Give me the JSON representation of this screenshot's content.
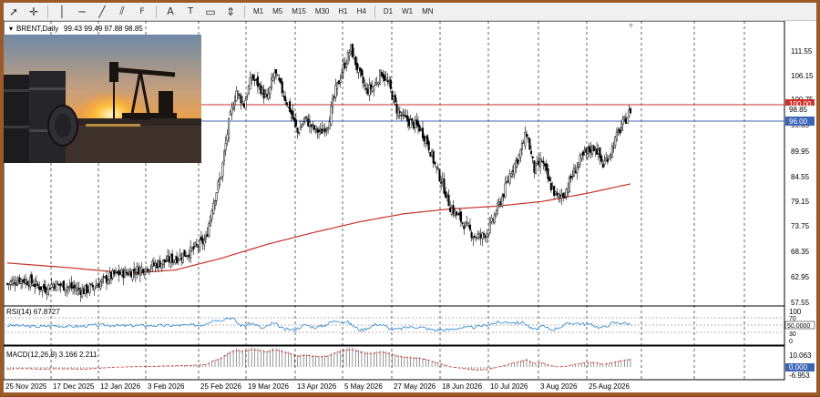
{
  "toolbar": {
    "timeframes": [
      "M1",
      "M5",
      "M15",
      "M30",
      "H1",
      "H4",
      "D1",
      "W1",
      "MN"
    ],
    "icons": [
      "cursor-icon",
      "crosshair-icon",
      "vertical-line-icon",
      "horizontal-line-icon",
      "trendline-icon",
      "channel-icon",
      "fibonacci-icon",
      "text-icon",
      "label-icon",
      "shapes-icon",
      "arrows-icon"
    ]
  },
  "main": {
    "symbol_header": "BRENT,Daily",
    "ohlc": "99.43 99.49 97.88 98.85",
    "price_ticks": [
      "111.55",
      "106.15",
      "100.75",
      "95.35",
      "89.95",
      "84.55",
      "79.15",
      "73.75",
      "68.35",
      "62.95",
      "57.55"
    ],
    "current_price_label": "98.85",
    "level_red_label": "100.00",
    "level_blue_label": "96.00",
    "colors": {
      "red_level": "#d0302a",
      "blue_level": "#3c64b4",
      "ma": "#c83228",
      "candle": "#000000"
    }
  },
  "rsi": {
    "label": "RSI(14) 67.8727",
    "ticks": [
      "100",
      "70",
      "50",
      "30",
      "0"
    ],
    "level_label": "50.0000"
  },
  "macd": {
    "label": "MACD(12,26,9) 3.166 2.211",
    "ticks": [
      "10.063",
      "0.000",
      "-6.953"
    ]
  },
  "x_axis": [
    "25 Nov 2025",
    "17 Dec 2025",
    "12 Jan 2026",
    "3 Feb 2026",
    "25 Feb 2026",
    "19 Mar 2026",
    "13 Apr 2026",
    "5 May 2026",
    "27 May 2026",
    "18 Jun 2026",
    "10 Jul 2026",
    "3 Aug 2026",
    "25 Aug 2026"
  ],
  "photo": {
    "subject": "oil-pumpjack-sunset-image"
  },
  "chart_data": {
    "type": "candlestick",
    "title": "BRENT,Daily",
    "ylim": [
      57.55,
      111.55
    ],
    "levels": [
      100.0,
      96.0
    ],
    "last_close": 98.85,
    "x_dates": [
      "25 Nov 2025",
      "17 Dec 2025",
      "12 Jan 2026",
      "3 Feb 2026",
      "25 Feb 2026",
      "19 Mar 2026",
      "13 Apr 2026",
      "5 May 2026",
      "27 May 2026",
      "18 Jun 2026",
      "10 Jul 2026",
      "3 Aug 2026",
      "25 Aug 2026"
    ],
    "close_path": [
      [
        0,
        61.5
      ],
      [
        8,
        62.5
      ],
      [
        15,
        62
      ],
      [
        20,
        61
      ],
      [
        25,
        60.5
      ],
      [
        30,
        61.5
      ],
      [
        38,
        61
      ],
      [
        44,
        60.5
      ],
      [
        50,
        60
      ],
      [
        57,
        61
      ],
      [
        62,
        62
      ],
      [
        70,
        63.5
      ],
      [
        80,
        64
      ],
      [
        90,
        65
      ],
      [
        100,
        66
      ],
      [
        110,
        67
      ],
      [
        120,
        68.5
      ],
      [
        130,
        71
      ],
      [
        134,
        78
      ],
      [
        140,
        85
      ],
      [
        145,
        96
      ],
      [
        150,
        103
      ],
      [
        155,
        100
      ],
      [
        160,
        106
      ],
      [
        165,
        104
      ],
      [
        170,
        101
      ],
      [
        175,
        107
      ],
      [
        180,
        103
      ],
      [
        185,
        99
      ],
      [
        190,
        94
      ],
      [
        195,
        97
      ],
      [
        200,
        95
      ],
      [
        205,
        94
      ],
      [
        210,
        96
      ],
      [
        215,
        103
      ],
      [
        220,
        108
      ],
      [
        225,
        112
      ],
      [
        230,
        107
      ],
      [
        235,
        103
      ],
      [
        240,
        104
      ],
      [
        245,
        107
      ],
      [
        250,
        104
      ],
      [
        255,
        99
      ],
      [
        260,
        97
      ],
      [
        265,
        96
      ],
      [
        270,
        95
      ],
      [
        275,
        92
      ],
      [
        280,
        87
      ],
      [
        285,
        83
      ],
      [
        290,
        78
      ],
      [
        295,
        76
      ],
      [
        300,
        74
      ],
      [
        305,
        72
      ],
      [
        310,
        71.5
      ],
      [
        315,
        73
      ],
      [
        320,
        77
      ],
      [
        325,
        81
      ],
      [
        330,
        86
      ],
      [
        335,
        89
      ],
      [
        340,
        94
      ],
      [
        345,
        86
      ],
      [
        350,
        88
      ],
      [
        355,
        83
      ],
      [
        360,
        80
      ],
      [
        365,
        81
      ],
      [
        370,
        85
      ],
      [
        375,
        88
      ],
      [
        380,
        90
      ],
      [
        385,
        91
      ],
      [
        390,
        87
      ],
      [
        395,
        90
      ],
      [
        400,
        94
      ],
      [
        405,
        97
      ],
      [
        408,
        98.85
      ]
    ],
    "ma_path": [
      [
        0,
        66
      ],
      [
        40,
        65
      ],
      [
        80,
        63.8
      ],
      [
        110,
        64.5
      ],
      [
        140,
        67
      ],
      [
        170,
        70
      ],
      [
        200,
        72.5
      ],
      [
        230,
        74.8
      ],
      [
        260,
        76.6
      ],
      [
        290,
        77.6
      ],
      [
        320,
        78.2
      ],
      [
        350,
        79.2
      ],
      [
        380,
        81
      ],
      [
        408,
        83
      ]
    ]
  }
}
